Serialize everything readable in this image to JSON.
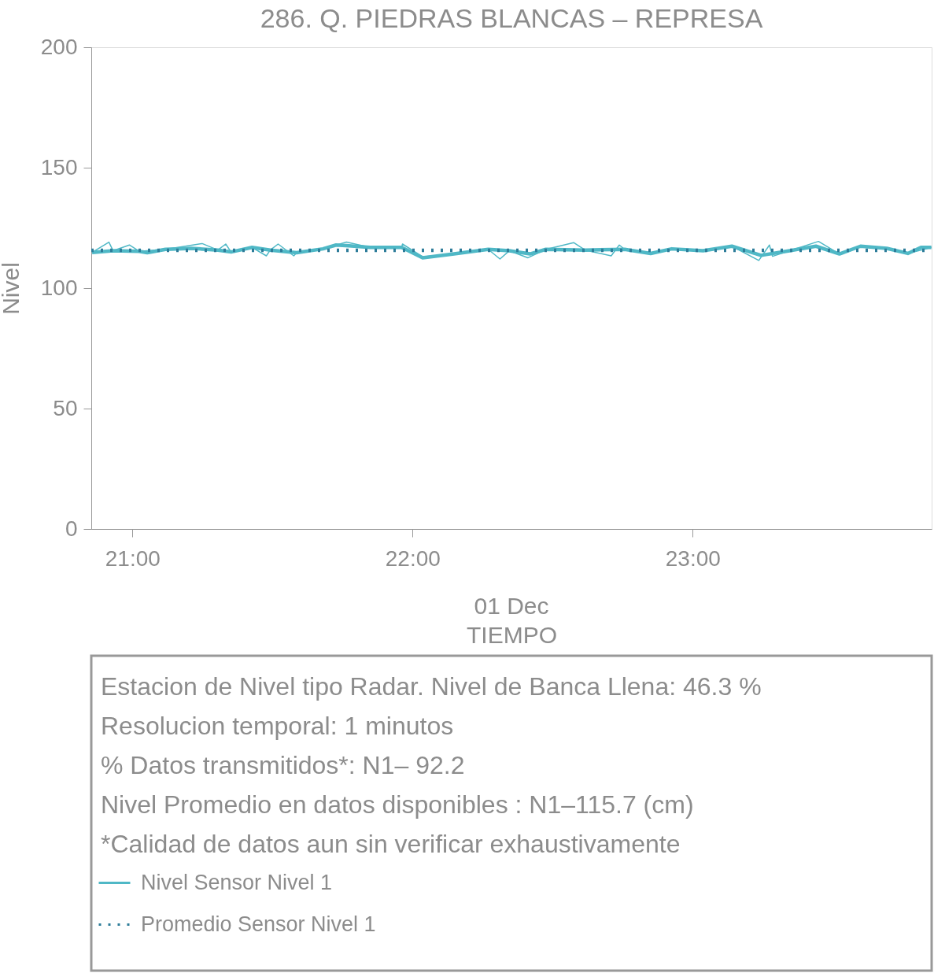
{
  "chart_data": {
    "type": "line",
    "title": "286. Q. PIEDRAS BLANCAS – REPRESA",
    "xlabel": "TIEMPO",
    "ylabel": "Nivel",
    "xlim": [
      20.853,
      23.853
    ],
    "xticks": [
      {
        "value": 21,
        "label": "21:00"
      },
      {
        "value": 22,
        "label": "22:00"
      },
      {
        "value": 23,
        "label": "23:00"
      }
    ],
    "ylim": [
      0,
      200
    ],
    "yticks": [
      0,
      50,
      100,
      150,
      200
    ],
    "grid": false,
    "legend": "bottom",
    "annotations": [
      "01 Dec",
      "Estacion de Nivel tipo Radar. Nivel de Banca Llena: 46.3 %",
      "Resolucion temporal: 1 minutos",
      "% Datos transmitidos*: N1– 92.2",
      "Nivel Promedio en datos disponibles : N1–115.7 (cm)",
      "*Calidad de datos aun sin verificar exhaustivamente"
    ],
    "series": [
      {
        "color": "#4fb8c6",
        "line_style": "solid",
        "x": [
          20.856,
          20.916,
          20.931,
          20.989,
          21.024,
          21.118,
          21.249,
          21.305,
          21.333,
          21.352,
          21.427,
          21.478,
          21.492,
          21.52,
          21.576,
          21.586,
          21.68,
          21.764,
          21.848,
          21.961,
          21.964,
          22.036,
          22.148,
          22.27,
          22.312,
          22.345,
          22.412,
          22.476,
          22.575,
          22.616,
          22.709,
          22.738,
          22.757,
          22.85,
          22.925,
          23.037,
          23.14,
          23.236,
          23.274,
          23.285,
          23.346,
          23.449,
          23.524,
          23.599,
          23.693,
          23.768,
          23.852
        ],
        "values": [
          114.8,
          119.1,
          115.5,
          117.9,
          115.3,
          116.1,
          118.5,
          115.8,
          118.3,
          115.0,
          116.9,
          113.4,
          115.8,
          118.3,
          113.4,
          114.7,
          116.3,
          119.1,
          116.9,
          116.9,
          118.3,
          113.0,
          114.2,
          116.1,
          112.1,
          115.5,
          112.6,
          116.1,
          118.9,
          115.8,
          113.4,
          117.9,
          116.1,
          114.4,
          116.3,
          115.5,
          117.4,
          111.5,
          117.9,
          113.2,
          115.5,
          119.4,
          114.2,
          117.4,
          116.5,
          114.4,
          116.9
        ]
      },
      {
        "name": "Nivel Sensor Nivel 1",
        "color": "#4fb8c6",
        "line_style": "solid",
        "x": [
          20.856,
          20.931,
          21.024,
          21.053,
          21.118,
          21.212,
          21.305,
          21.352,
          21.427,
          21.492,
          21.586,
          21.68,
          21.727,
          21.773,
          21.848,
          21.961,
          22.036,
          22.148,
          22.27,
          22.345,
          22.419,
          22.476,
          22.616,
          22.757,
          22.85,
          22.925,
          23.037,
          23.14,
          23.244,
          23.346,
          23.44,
          23.524,
          23.599,
          23.693,
          23.768,
          23.815,
          23.852
        ],
        "values": [
          114.8,
          115.5,
          115.3,
          114.7,
          116.1,
          116.5,
          115.8,
          115.0,
          116.9,
          115.8,
          114.7,
          116.3,
          117.9,
          117.6,
          116.9,
          116.9,
          112.6,
          114.2,
          116.1,
          115.5,
          114.2,
          116.1,
          115.8,
          116.1,
          114.4,
          116.3,
          115.5,
          117.4,
          113.6,
          115.5,
          117.4,
          114.2,
          117.4,
          116.5,
          114.4,
          116.9,
          116.9
        ]
      },
      {
        "name": "Promedio Sensor Nivel 1",
        "color": "#2e7d9a",
        "line_style": "dotted",
        "x": [
          20.853,
          23.853
        ],
        "values": [
          115.7,
          115.7
        ]
      }
    ]
  }
}
